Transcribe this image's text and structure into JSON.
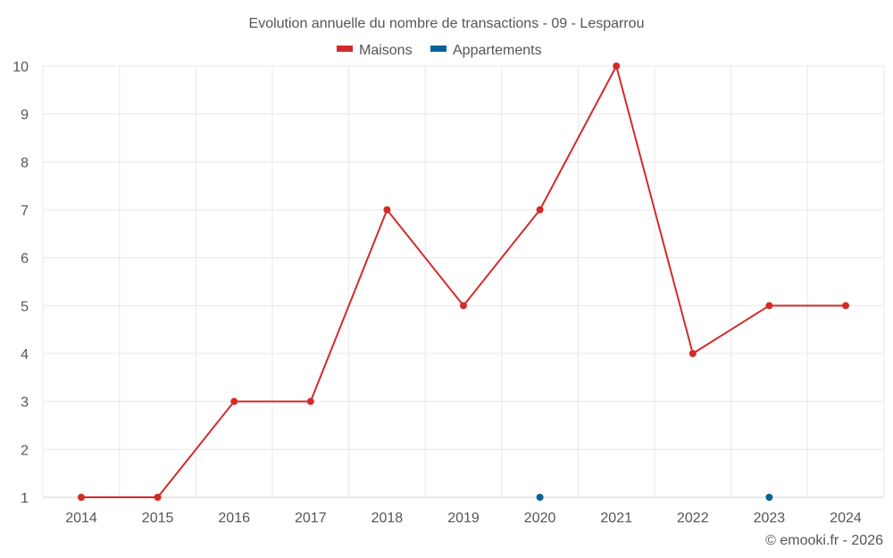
{
  "chart_data": {
    "type": "line",
    "title": "Evolution annuelle du nombre de transactions - 09 - Lesparrou",
    "xlabel": "",
    "ylabel": "",
    "categories": [
      "2014",
      "2015",
      "2016",
      "2017",
      "2018",
      "2019",
      "2020",
      "2021",
      "2022",
      "2023",
      "2024"
    ],
    "ylim": [
      1,
      10
    ],
    "yticks": [
      "1",
      "2",
      "3",
      "4",
      "5",
      "6",
      "7",
      "8",
      "9",
      "10"
    ],
    "grid": true,
    "legend_position": "top-center",
    "series": [
      {
        "name": "Maisons",
        "color": "#d42a2a",
        "values": [
          1,
          1,
          3,
          3,
          7,
          5,
          7,
          10,
          4,
          5,
          5
        ]
      },
      {
        "name": "Appartements",
        "color": "#0b6398",
        "values": [
          null,
          null,
          null,
          null,
          null,
          null,
          1,
          null,
          null,
          1,
          null
        ]
      }
    ]
  },
  "credit": "© emooki.fr - 2026"
}
